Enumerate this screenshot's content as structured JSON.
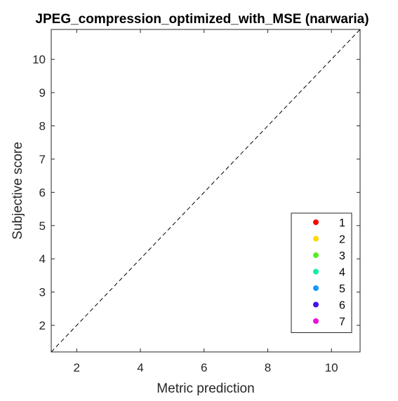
{
  "chart_data": {
    "type": "scatter",
    "title": "JPEG_compression_optimized_with_MSE (narwaria)",
    "xlabel": "Metric prediction",
    "ylabel": "Subjective score",
    "xlim": [
      1.2,
      10.9
    ],
    "ylim": [
      1.2,
      10.9
    ],
    "x_ticks": [
      2,
      4,
      6,
      8,
      10
    ],
    "y_ticks": [
      2,
      3,
      4,
      5,
      6,
      7,
      8,
      9,
      10
    ],
    "grid": false,
    "reference_line": {
      "style": "dashed",
      "from": [
        1.2,
        1.2
      ],
      "to": [
        10.9,
        10.9
      ],
      "color": "#000000"
    },
    "legend": {
      "placement": "bottom-right",
      "entries": [
        {
          "label": "1",
          "color": "#ff0000"
        },
        {
          "label": "2",
          "color": "#ffd700"
        },
        {
          "label": "3",
          "color": "#55ee22"
        },
        {
          "label": "4",
          "color": "#11eeaa"
        },
        {
          "label": "5",
          "color": "#1199ff"
        },
        {
          "label": "6",
          "color": "#4411ee"
        },
        {
          "label": "7",
          "color": "#ee11dd"
        }
      ]
    },
    "series": []
  }
}
